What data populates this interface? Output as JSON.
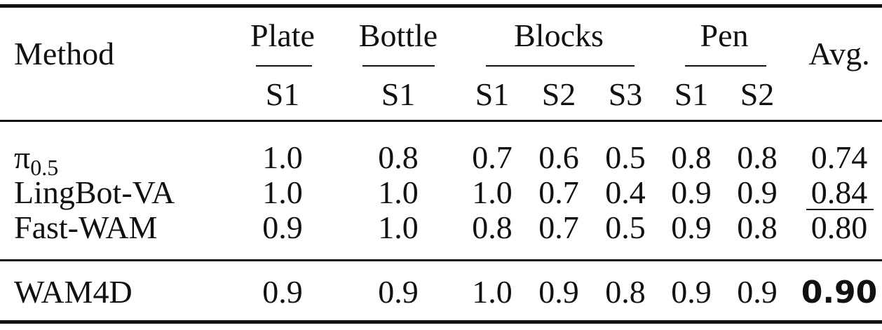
{
  "header": {
    "method": "Method",
    "groups": [
      {
        "name": "Plate",
        "subs": [
          "S1"
        ]
      },
      {
        "name": "Bottle",
        "subs": [
          "S1"
        ]
      },
      {
        "name": "Blocks",
        "subs": [
          "S1",
          "S2",
          "S3"
        ]
      },
      {
        "name": "Pen",
        "subs": [
          "S1",
          "S2"
        ]
      }
    ],
    "avg": "Avg."
  },
  "rows": [
    {
      "method": {
        "symbol": "π",
        "subscript": "0.5"
      },
      "values": [
        "1.0",
        "0.8",
        "0.7",
        "0.6",
        "0.5",
        "0.8",
        "0.8"
      ],
      "avg": "0.74"
    },
    {
      "method": "LingBot-VA",
      "values": [
        "1.0",
        "1.0",
        "1.0",
        "0.7",
        "0.4",
        "0.9",
        "0.9"
      ],
      "avg": "0.84"
    },
    {
      "method": "Fast-WAM",
      "values": [
        "0.9",
        "1.0",
        "0.8",
        "0.7",
        "0.5",
        "0.9",
        "0.8"
      ],
      "avg": "0.80"
    },
    {
      "method": "WAM4D",
      "values": [
        "0.9",
        "0.9",
        "1.0",
        "0.9",
        "0.8",
        "0.9",
        "0.9"
      ],
      "avg": "0.90"
    }
  ]
}
